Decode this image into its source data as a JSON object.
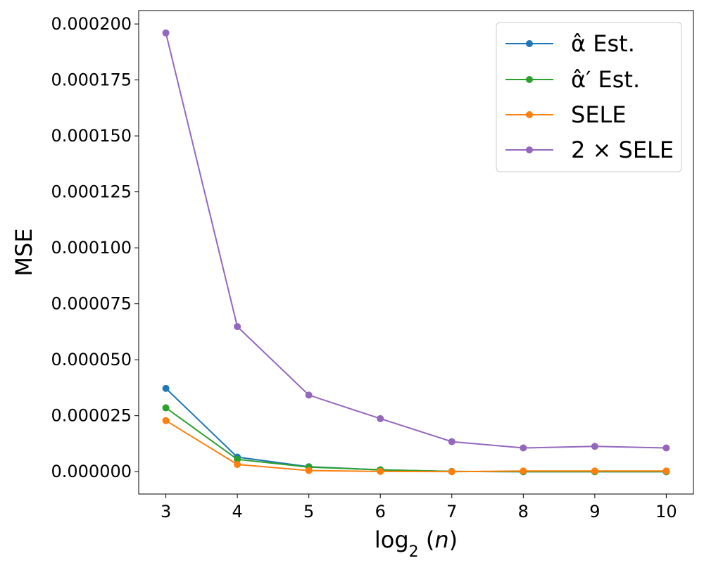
{
  "chart_data": {
    "type": "line",
    "title": "",
    "xlabel": "log2(n)",
    "ylabel": "MSE",
    "x": [
      3,
      4,
      5,
      6,
      7,
      8,
      9,
      10
    ],
    "xlim": [
      2.62,
      10.38
    ],
    "ylim": [
      -1e-05,
      0.000206
    ],
    "xticks": [
      "3",
      "4",
      "5",
      "6",
      "7",
      "8",
      "9",
      "10"
    ],
    "yticks": [
      "0.000000",
      "0.000025",
      "0.000050",
      "0.000075",
      "0.000100",
      "0.000125",
      "0.000150",
      "0.000175",
      "0.000200"
    ],
    "ytick_values": [
      0,
      2.5e-05,
      5e-05,
      7.5e-05,
      0.0001,
      0.000125,
      0.00015,
      0.000175,
      0.0002
    ],
    "grid": false,
    "legend_position": "top-right",
    "series": [
      {
        "name": "α̂ Est.",
        "color": "#1f77b4",
        "values": [
          3.72e-05,
          6.5e-06,
          2.2e-06,
          8e-07,
          1e-07,
          0.0,
          0.0,
          0.0
        ]
      },
      {
        "name": "α̂′ Est.",
        "color": "#2ca02c",
        "values": [
          2.85e-05,
          5.5e-06,
          2e-06,
          8e-07,
          1e-07,
          0.0,
          0.0,
          0.0
        ]
      },
      {
        "name": "SELE",
        "color": "#ff7f0e",
        "values": [
          2.28e-05,
          3.2e-06,
          5e-07,
          1e-07,
          0.0,
          3e-07,
          3e-07,
          3e-07
        ]
      },
      {
        "name": "2 × SELE",
        "color": "#9467bd",
        "values": [
          0.000196,
          6.48e-05,
          3.42e-05,
          2.37e-05,
          1.34e-05,
          1.06e-05,
          1.13e-05,
          1.06e-05
        ]
      }
    ]
  }
}
